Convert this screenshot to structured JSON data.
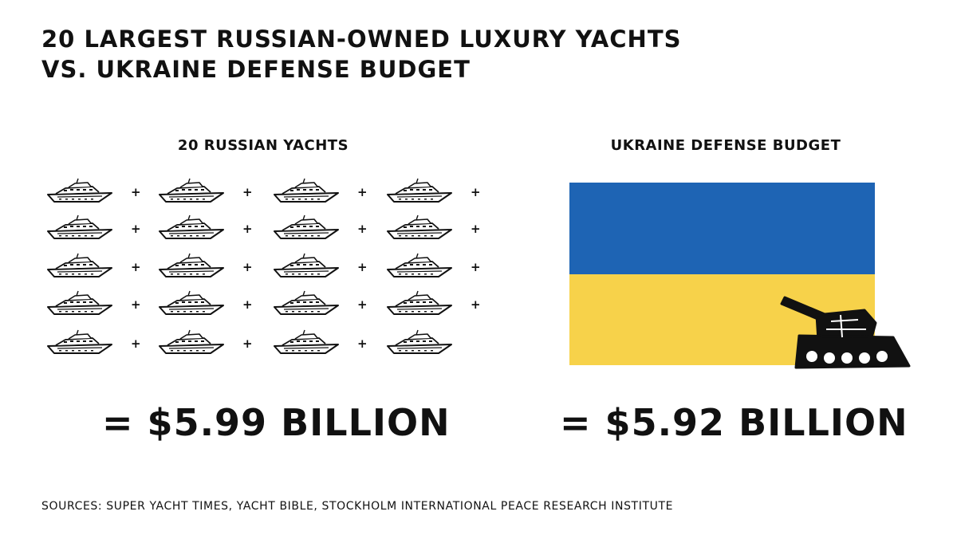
{
  "title": {
    "line1": "20 LARGEST RUSSIAN-OWNED LUXURY YACHTS",
    "line2": "VS. UKRAINE DEFENSE BUDGET"
  },
  "left_panel": {
    "heading": "20 RUSSIAN YACHTS",
    "yacht_count": 20,
    "yacht_icon": "yacht-icon",
    "plus_symbol": "+",
    "total": "= $5.99 BILLION"
  },
  "right_panel": {
    "heading": "UKRAINE DEFENSE BUDGET",
    "flag_colors": {
      "top": "#1e64b4",
      "bottom": "#f7d24a"
    },
    "tank_icon": "tank-icon",
    "total": "= $5.92 BILLION"
  },
  "sources": "SOURCES: SUPER YACHT TIMES, YACHT BIBLE, STOCKHOLM INTERNATIONAL PEACE RESEARCH INSTITUTE"
}
